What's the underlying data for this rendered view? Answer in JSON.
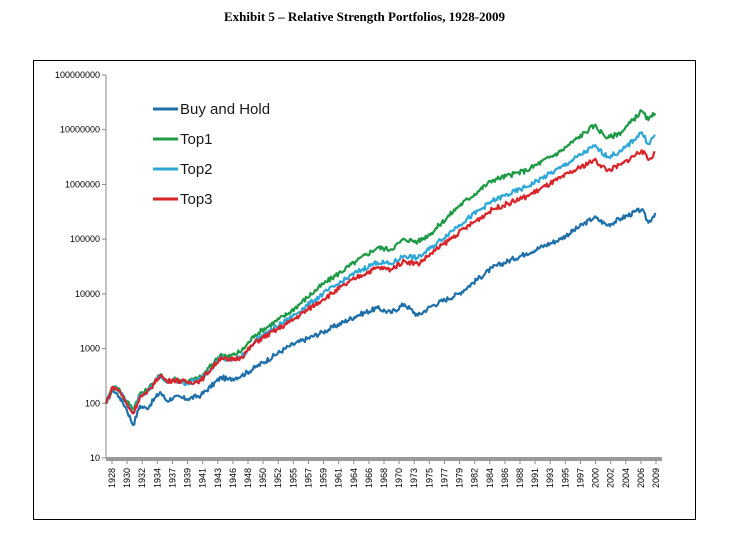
{
  "title": "Exhibit 5 – Relative Strength Portfolios, 1928-2009",
  "chart_data": {
    "type": "line",
    "title": "Exhibit 5 – Relative Strength Portfolios, 1928-2009",
    "xlabel": "",
    "ylabel": "",
    "y_scale": "log",
    "ylim": [
      10,
      100000000
    ],
    "xlim": [
      1928,
      2010
    ],
    "y_ticks": [
      "10",
      "100",
      "1000",
      "10000",
      "100000",
      "1000000",
      "10000000",
      "100000000"
    ],
    "x_ticks": [
      "1928",
      "1930",
      "1932",
      "1934",
      "1937",
      "1939",
      "1941",
      "1943",
      "1946",
      "1948",
      "1950",
      "1952",
      "1955",
      "1957",
      "1959",
      "1961",
      "1964",
      "1966",
      "1968",
      "1970",
      "1973",
      "1975",
      "1977",
      "1979",
      "1982",
      "1984",
      "1986",
      "1988",
      "1991",
      "1993",
      "1995",
      "1997",
      "2000",
      "2002",
      "2004",
      "2006",
      "2009"
    ],
    "grid": false,
    "legend_position": "top-left",
    "series": [
      {
        "name": "Buy and Hold",
        "color": "#1f6fa8",
        "x": [
          1928,
          1929,
          1930,
          1931,
          1932,
          1933,
          1934,
          1936,
          1937,
          1938,
          1940,
          1942,
          1945,
          1946,
          1948,
          1950,
          1955,
          1960,
          1965,
          1968,
          1970,
          1972,
          1974,
          1976,
          1980,
          1985,
          1990,
          1995,
          2000,
          2002,
          2004,
          2007,
          2008,
          2009
        ],
        "y": [
          100,
          180,
          130,
          80,
          40,
          90,
          80,
          160,
          110,
          130,
          120,
          140,
          300,
          270,
          320,
          450,
          1100,
          2000,
          4000,
          5500,
          4500,
          6500,
          4000,
          6000,
          10000,
          30000,
          55000,
          100000,
          250000,
          180000,
          240000,
          350000,
          200000,
          300000
        ]
      },
      {
        "name": "Top1",
        "color": "#1e9a46",
        "x": [
          1928,
          1929,
          1930,
          1931,
          1932,
          1933,
          1934,
          1936,
          1937,
          1938,
          1940,
          1942,
          1945,
          1946,
          1948,
          1950,
          1955,
          1960,
          1965,
          1968,
          1970,
          1972,
          1974,
          1976,
          1980,
          1985,
          1990,
          1995,
          2000,
          2002,
          2004,
          2007,
          2008,
          2009
        ],
        "y": [
          100,
          200,
          180,
          110,
          80,
          150,
          170,
          330,
          250,
          280,
          250,
          300,
          800,
          700,
          900,
          1800,
          4500,
          15000,
          40000,
          70000,
          65000,
          100000,
          90000,
          130000,
          400000,
          1200000,
          1800000,
          4000000,
          12000000,
          7000000,
          9000000,
          22000000,
          15000000,
          20000000
        ]
      },
      {
        "name": "Top2",
        "color": "#2fa8d8",
        "x": [
          1928,
          1929,
          1930,
          1931,
          1932,
          1933,
          1934,
          1936,
          1937,
          1938,
          1940,
          1942,
          1945,
          1946,
          1948,
          1950,
          1955,
          1960,
          1965,
          1968,
          1970,
          1972,
          1974,
          1976,
          1980,
          1985,
          1990,
          1995,
          2000,
          2002,
          2004,
          2007,
          2008,
          2009
        ],
        "y": [
          100,
          200,
          170,
          100,
          70,
          140,
          160,
          320,
          240,
          260,
          230,
          280,
          700,
          600,
          700,
          1400,
          3500,
          10000,
          25000,
          38000,
          35000,
          50000,
          45000,
          70000,
          180000,
          500000,
          900000,
          2000000,
          5000000,
          3200000,
          4000000,
          9000000,
          5500000,
          8000000
        ]
      },
      {
        "name": "Top3",
        "color": "#d7252a",
        "x": [
          1928,
          1929,
          1930,
          1931,
          1932,
          1933,
          1934,
          1936,
          1937,
          1938,
          1940,
          1942,
          1945,
          1946,
          1948,
          1950,
          1955,
          1960,
          1965,
          1968,
          1970,
          1972,
          1974,
          1976,
          1980,
          1985,
          1990,
          1995,
          2000,
          2002,
          2004,
          2007,
          2008,
          2009
        ],
        "y": [
          100,
          200,
          170,
          100,
          65,
          130,
          150,
          330,
          250,
          270,
          240,
          260,
          700,
          600,
          700,
          1300,
          3000,
          8000,
          20000,
          30000,
          28000,
          40000,
          35000,
          55000,
          130000,
          350000,
          600000,
          1300000,
          2800000,
          1800000,
          2300000,
          4200000,
          2800000,
          3800000
        ]
      }
    ]
  }
}
